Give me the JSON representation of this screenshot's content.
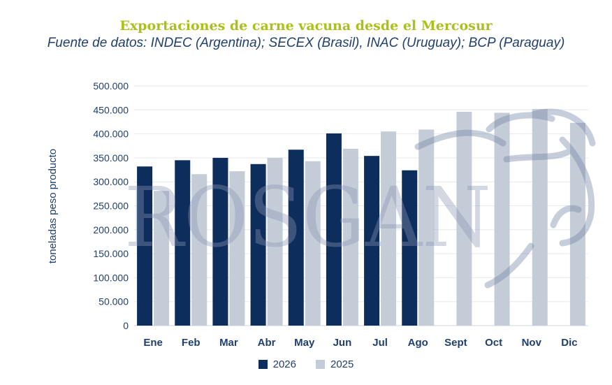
{
  "header": {
    "title": "Exportaciones de carne vacuna desde el Mercosur",
    "subtitle": "Fuente de datos: INDEC (Argentina); SECEX (Brasil), INAC (Uruguay); BCP (Paraguay)"
  },
  "watermark": {
    "text": "ROSGAN",
    "icon": "cow-head-icon"
  },
  "colors": {
    "series_2026": "#0d2d5c",
    "series_2025": "#c4ccd8",
    "grid": "#e6e9ee",
    "text": "#1f3f6e"
  },
  "chart_data": {
    "type": "bar",
    "title": "Exportaciones de carne vacuna desde el Mercosur",
    "ylabel": "toneladas peso producto",
    "xlabel": "",
    "categories": [
      "Ene",
      "Feb",
      "Mar",
      "Abr",
      "May",
      "Jun",
      "Jul",
      "Ago",
      "Sept",
      "Oct",
      "Nov",
      "Dic"
    ],
    "ylim": [
      0,
      500000
    ],
    "yticks": [
      0,
      50000,
      100000,
      150000,
      200000,
      250000,
      300000,
      350000,
      400000,
      450000,
      500000
    ],
    "ytick_labels": [
      "0",
      "50.000",
      "100.000",
      "150.000",
      "200.000",
      "250.000",
      "300.000",
      "350.000",
      "400.000",
      "450.000",
      "500.000"
    ],
    "grid": true,
    "legend_position": "bottom",
    "series": [
      {
        "name": "2026",
        "values": [
          332000,
          345000,
          350000,
          337000,
          367000,
          401000,
          354000,
          324000,
          null,
          null,
          null,
          null
        ]
      },
      {
        "name": "2025",
        "values": [
          281000,
          316000,
          322000,
          350000,
          343000,
          369000,
          405000,
          409000,
          446000,
          444000,
          452000,
          423000
        ]
      }
    ]
  }
}
